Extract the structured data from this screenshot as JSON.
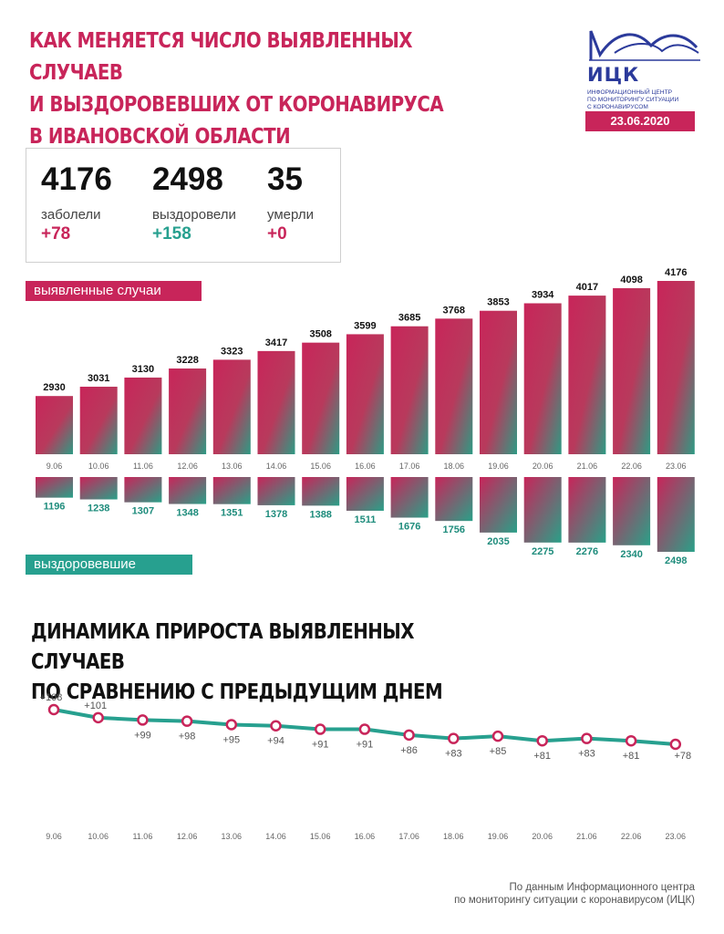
{
  "header": {
    "title_lines": [
      "Как меняется число выявленных случаев",
      "и выздоровевших от коронавируса",
      "в Ивановской области"
    ]
  },
  "logo": {
    "name": "ИЦК",
    "subtitle_lines": [
      "Информационный центр",
      "по мониторингу ситуации",
      "с коронавирусом"
    ]
  },
  "date": "23.06.2020",
  "stats": {
    "cases": {
      "value": "4176",
      "label": "заболели",
      "delta": "+78"
    },
    "recovered": {
      "value": "2498",
      "label": "выздоровели",
      "delta": "+158"
    },
    "deaths": {
      "value": "35",
      "label": "умерли",
      "delta": "+0"
    }
  },
  "colors": {
    "accent": "#c8255a",
    "teal": "#27a08f",
    "brand_blue": "#2b3a9b"
  },
  "chart_data": [
    {
      "type": "bar",
      "categories": [
        "9.06",
        "10.06",
        "11.06",
        "12.06",
        "13.06",
        "14.06",
        "15.06",
        "16.06",
        "17.06",
        "18.06",
        "19.06",
        "20.06",
        "21.06",
        "22.06",
        "23.06"
      ],
      "series": [
        {
          "name": "выявленные случаи",
          "values": [
            2930,
            3031,
            3130,
            3228,
            3323,
            3417,
            3508,
            3599,
            3685,
            3768,
            3853,
            3934,
            4017,
            4098,
            4176
          ]
        },
        {
          "name": "выздоровевшие",
          "values": [
            1196,
            1238,
            1307,
            1348,
            1351,
            1378,
            1388,
            1511,
            1676,
            1756,
            2035,
            2275,
            2276,
            2340,
            2498
          ]
        }
      ]
    },
    {
      "type": "line",
      "title": "Динамика прироста выявленных случаев по сравнению с предыдущим днем",
      "categories": [
        "9.06",
        "10.06",
        "11.06",
        "12.06",
        "13.06",
        "14.06",
        "15.06",
        "16.06",
        "17.06",
        "18.06",
        "19.06",
        "20.06",
        "21.06",
        "22.06",
        "23.06"
      ],
      "values": [
        108,
        101,
        99,
        98,
        95,
        94,
        91,
        91,
        86,
        83,
        85,
        81,
        83,
        81,
        78
      ],
      "labels": [
        "+108",
        "+101",
        "+99",
        "+98",
        "+95",
        "+94",
        "+91",
        "+91",
        "+86",
        "+83",
        "+85",
        "+81",
        "+83",
        "+81",
        "+78"
      ]
    }
  ],
  "section_title_lines": [
    "Динамика прироста выявленных случаев",
    "по сравнению с предыдущим днем"
  ],
  "footer_lines": [
    "По данным Информационного центра",
    "по мониторингу ситуации с коронавирусом (ИЦК)"
  ]
}
